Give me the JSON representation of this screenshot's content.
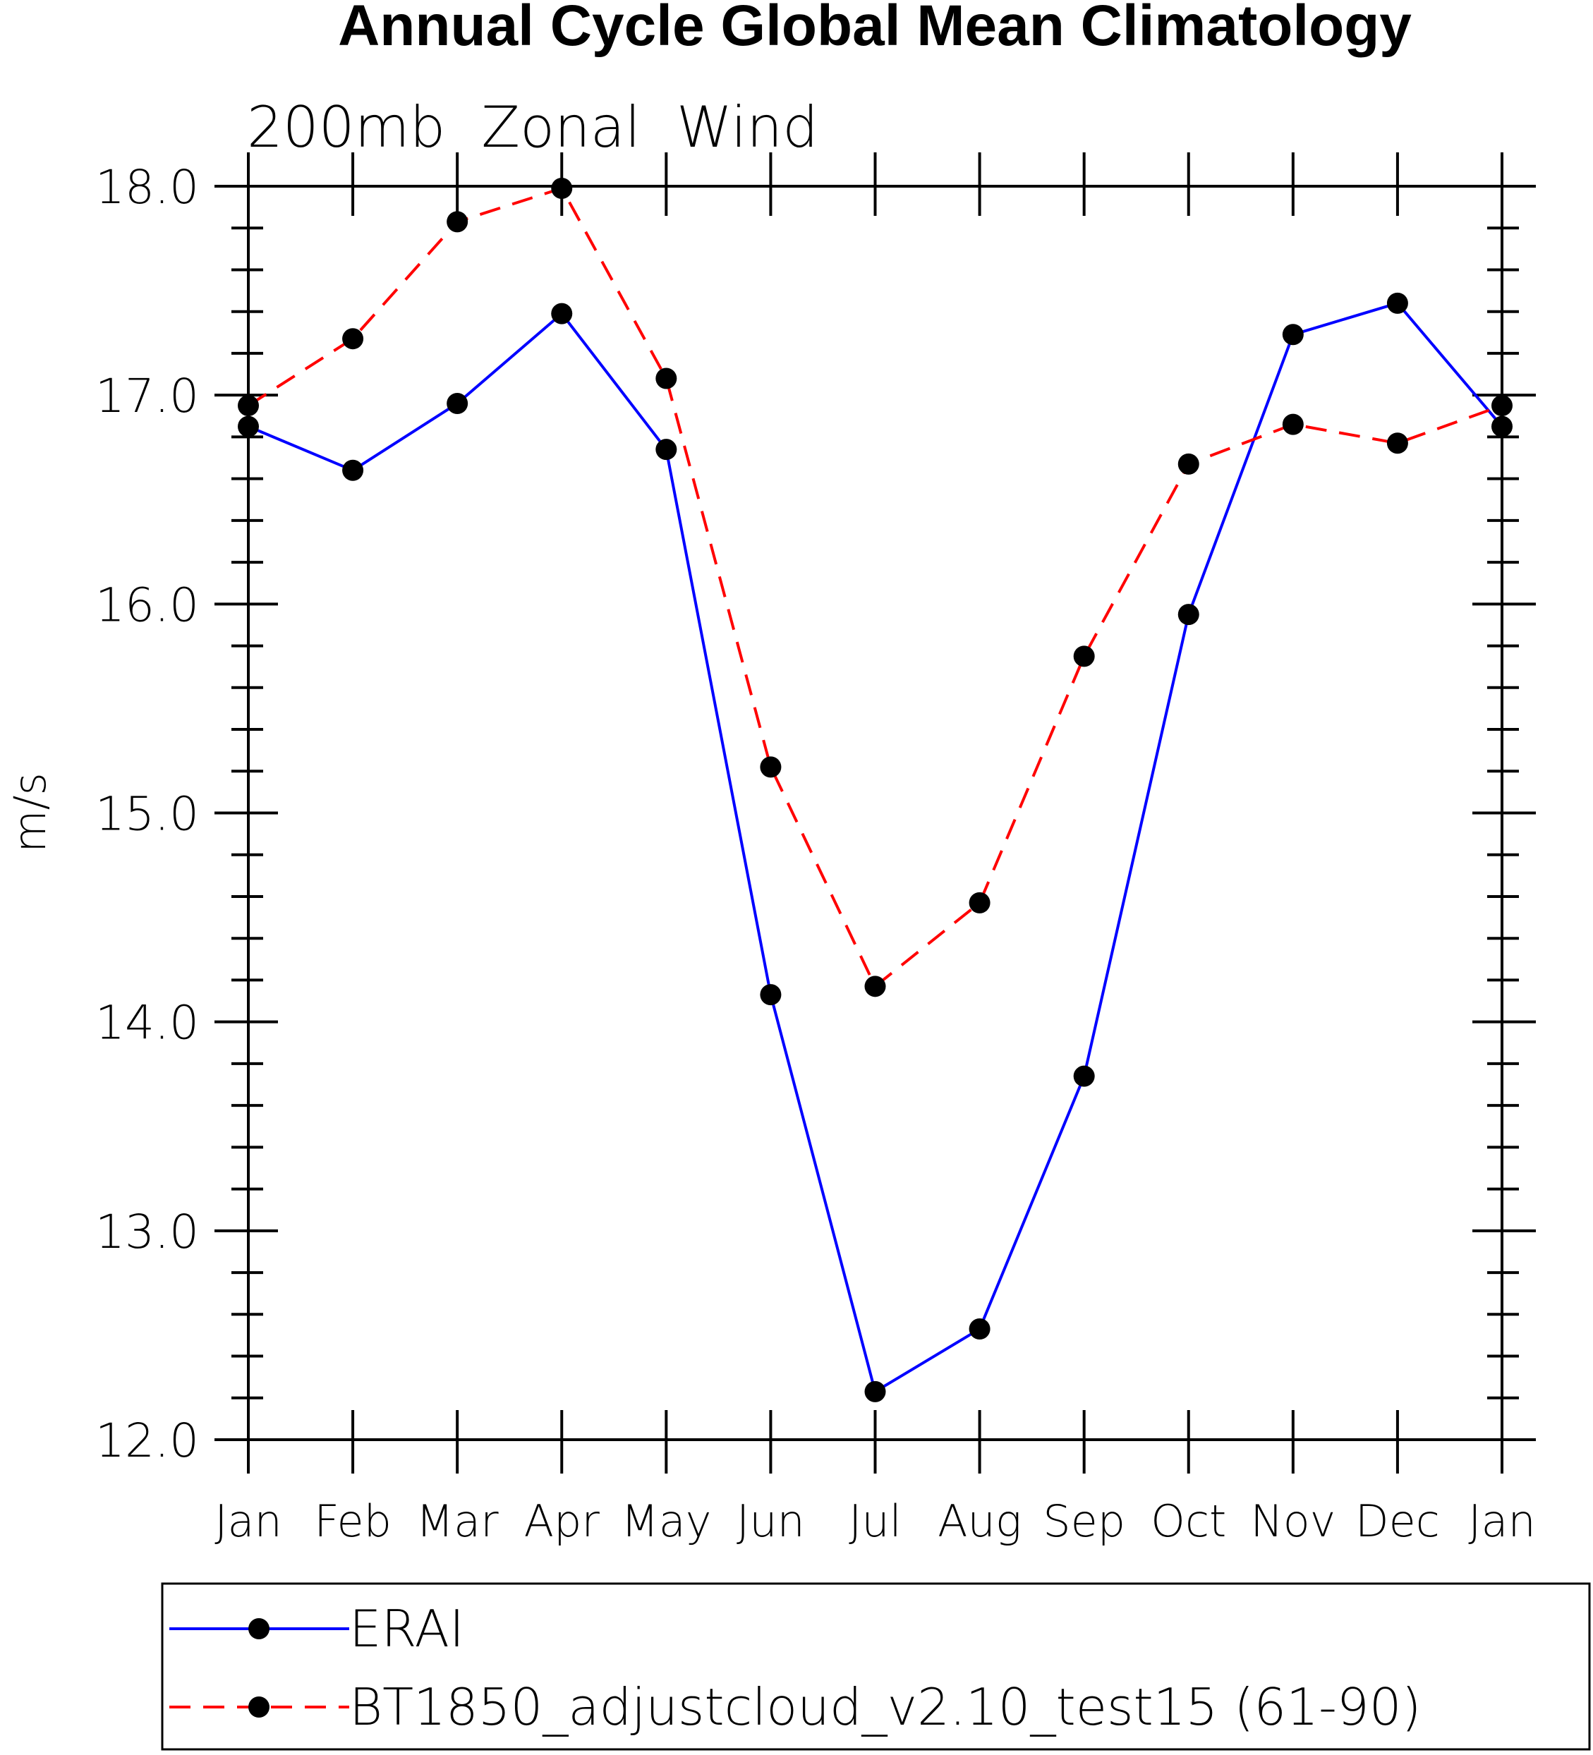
{
  "chart_data": {
    "type": "line",
    "title": "Annual Cycle Global Mean Climatology",
    "subtitle": "200mb  Zonal  Wind",
    "xlabel": "",
    "ylabel": "m/s",
    "categories": [
      "Jan",
      "Feb",
      "Mar",
      "Apr",
      "May",
      "Jun",
      "Jul",
      "Aug",
      "Sep",
      "Oct",
      "Nov",
      "Dec",
      "Jan"
    ],
    "ylim": [
      12.0,
      18.0
    ],
    "y_ticks": [
      "12.0",
      "13.0",
      "14.0",
      "15.0",
      "16.0",
      "17.0",
      "18.0"
    ],
    "grid": false,
    "legend_position": "bottom",
    "series": [
      {
        "name": "ERAI",
        "color": "#0000ff",
        "line_style": "solid",
        "marker": "filled-circle",
        "values": [
          16.85,
          16.64,
          16.96,
          17.39,
          16.74,
          14.13,
          12.23,
          12.53,
          13.74,
          15.95,
          17.29,
          17.44,
          16.85
        ]
      },
      {
        "name": "BT1850_adjustcloud_v2.10_test15 (61-90)",
        "color": "#ff0000",
        "line_style": "dashed",
        "marker": "filled-circle",
        "values": [
          16.95,
          17.27,
          17.83,
          17.99,
          17.08,
          15.22,
          14.17,
          14.57,
          15.75,
          16.67,
          16.86,
          16.77,
          16.95
        ]
      }
    ]
  }
}
